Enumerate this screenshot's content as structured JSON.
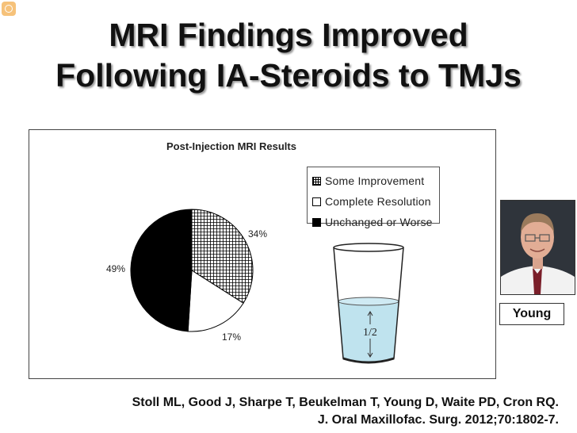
{
  "slide": {
    "title_line1": "MRI Findings Improved",
    "title_line2": "Following IA-Steroids to TMJs",
    "citation_line1": "Stoll ML, Good J, Sharpe T, Beukelman T, Young D, Waite PD, Cron RQ.",
    "citation_line2": "J. Oral Maxillofac. Surg. 2012;70:1802-7.",
    "photo_caption": "Young",
    "glass_label": "1/2"
  },
  "chart_data": {
    "type": "pie",
    "title": "Post-Injection MRI Results",
    "legend_position": "top-right",
    "slices": [
      {
        "name": "Some Improvement",
        "value": 34,
        "label": "34%",
        "fill": "crosshatch"
      },
      {
        "name": "Complete Resolution",
        "value": 17,
        "label": "17%",
        "fill": "#ffffff"
      },
      {
        "name": "Unchanged or Worse",
        "value": 49,
        "label": "49%",
        "fill": "#000000"
      }
    ]
  },
  "colors": {
    "water": "#bfe3ee",
    "text": "#111111"
  }
}
